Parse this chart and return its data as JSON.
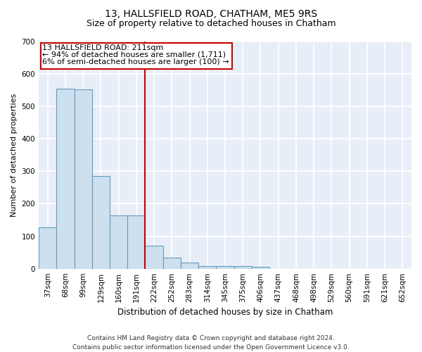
{
  "title": "13, HALLSFIELD ROAD, CHATHAM, ME5 9RS",
  "subtitle": "Size of property relative to detached houses in Chatham",
  "xlabel": "Distribution of detached houses by size in Chatham",
  "ylabel": "Number of detached properties",
  "categories": [
    "37sqm",
    "68sqm",
    "99sqm",
    "129sqm",
    "160sqm",
    "191sqm",
    "222sqm",
    "252sqm",
    "283sqm",
    "314sqm",
    "345sqm",
    "375sqm",
    "406sqm",
    "437sqm",
    "468sqm",
    "498sqm",
    "529sqm",
    "560sqm",
    "591sqm",
    "621sqm",
    "652sqm"
  ],
  "values": [
    128,
    555,
    553,
    285,
    165,
    165,
    70,
    33,
    18,
    9,
    9,
    9,
    5,
    0,
    0,
    0,
    0,
    0,
    0,
    0,
    0
  ],
  "bar_color": "#cce0f0",
  "bar_edge_color": "#6699bb",
  "vline_x": 5.5,
  "vline_color": "#cc0000",
  "annotation_line1": "13 HALLSFIELD ROAD: 211sqm",
  "annotation_line2": "← 94% of detached houses are smaller (1,711)",
  "annotation_line3": "6% of semi-detached houses are larger (100) →",
  "annotation_box_color": "#ffffff",
  "annotation_box_edge": "#cc0000",
  "ylim": [
    0,
    700
  ],
  "yticks": [
    0,
    100,
    200,
    300,
    400,
    500,
    600,
    700
  ],
  "bg_color": "#e8eef8",
  "grid_color": "#ffffff",
  "footer": "Contains HM Land Registry data © Crown copyright and database right 2024.\nContains public sector information licensed under the Open Government Licence v3.0.",
  "title_fontsize": 10,
  "subtitle_fontsize": 9,
  "xlabel_fontsize": 8.5,
  "ylabel_fontsize": 8,
  "tick_fontsize": 7.5,
  "footer_fontsize": 6.5,
  "annot_fontsize": 8
}
